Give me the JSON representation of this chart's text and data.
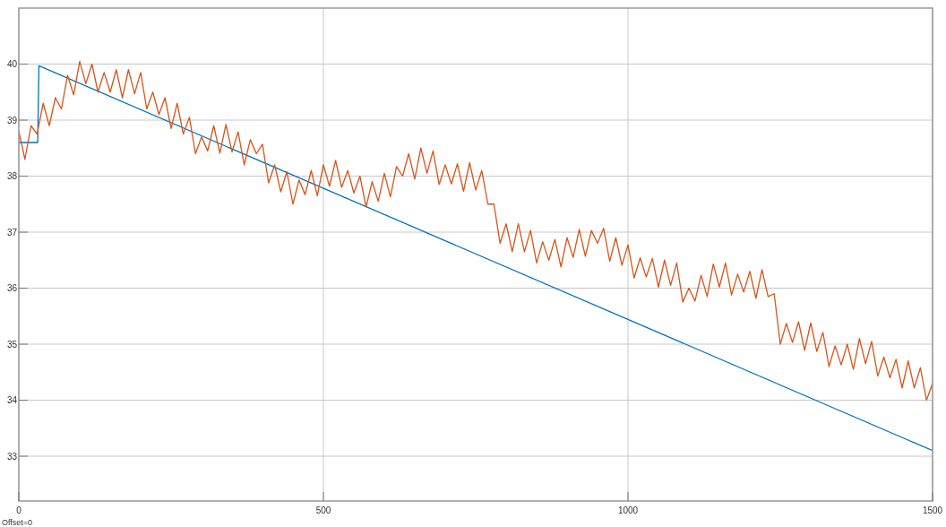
{
  "chart_data": {
    "type": "line",
    "annotations": [
      "Offset=0"
    ],
    "xlim": [
      0,
      1500
    ],
    "xticks": [
      0,
      500,
      1000,
      1500
    ],
    "ylim": [
      32.2,
      41
    ],
    "yticks": [
      33,
      34,
      35,
      36,
      37,
      38,
      39,
      40
    ],
    "grid": true,
    "line_style": "solid",
    "series": [
      {
        "color": "#0072bd",
        "x": [
          0,
          31,
          33,
          1500
        ],
        "values": [
          38.6,
          38.6,
          39.97,
          33.1
        ]
      },
      {
        "color": "#d95319",
        "x": [
          0,
          10,
          20,
          30,
          40,
          50,
          60,
          70,
          80,
          90,
          100,
          110,
          120,
          130,
          140,
          150,
          160,
          170,
          180,
          190,
          200,
          210,
          220,
          230,
          240,
          250,
          260,
          270,
          280,
          290,
          300,
          310,
          320,
          330,
          340,
          350,
          360,
          370,
          380,
          390,
          400,
          410,
          420,
          430,
          440,
          450,
          460,
          470,
          480,
          490,
          500,
          510,
          520,
          530,
          540,
          550,
          560,
          570,
          580,
          590,
          600,
          610,
          620,
          630,
          640,
          650,
          660,
          670,
          680,
          690,
          700,
          710,
          720,
          730,
          740,
          750,
          760,
          770,
          780,
          790,
          800,
          810,
          820,
          830,
          840,
          850,
          860,
          870,
          880,
          890,
          900,
          910,
          920,
          930,
          940,
          950,
          960,
          970,
          980,
          990,
          1000,
          1010,
          1020,
          1030,
          1040,
          1050,
          1060,
          1070,
          1080,
          1090,
          1100,
          1110,
          1120,
          1130,
          1140,
          1150,
          1160,
          1170,
          1180,
          1190,
          1200,
          1210,
          1220,
          1230,
          1240,
          1250,
          1260,
          1270,
          1280,
          1290,
          1300,
          1310,
          1320,
          1330,
          1340,
          1350,
          1360,
          1370,
          1380,
          1390,
          1400,
          1410,
          1420,
          1430,
          1440,
          1450,
          1460,
          1470,
          1480,
          1490,
          1500
        ],
        "values": [
          38.8,
          38.3,
          38.9,
          38.75,
          39.3,
          38.9,
          39.4,
          39.2,
          39.8,
          39.45,
          40.05,
          39.65,
          40.0,
          39.5,
          39.85,
          39.5,
          39.9,
          39.4,
          39.9,
          39.47,
          39.85,
          39.2,
          39.5,
          39.1,
          39.4,
          38.85,
          39.3,
          38.75,
          39.05,
          38.4,
          38.7,
          38.45,
          38.9,
          38.41,
          38.92,
          38.43,
          38.79,
          38.2,
          38.65,
          38.4,
          38.57,
          37.88,
          38.2,
          37.72,
          38.08,
          37.5,
          37.93,
          37.67,
          38.1,
          37.65,
          38.2,
          37.82,
          38.28,
          37.8,
          38.1,
          37.7,
          38.0,
          37.45,
          37.9,
          37.55,
          38.05,
          37.63,
          38.17,
          38.0,
          38.4,
          37.95,
          38.5,
          38.05,
          38.45,
          37.85,
          38.2,
          37.86,
          38.22,
          37.73,
          38.24,
          37.75,
          38.1,
          37.5,
          37.5,
          36.8,
          37.15,
          36.65,
          37.15,
          36.65,
          37.03,
          36.45,
          36.83,
          36.5,
          36.87,
          36.38,
          36.9,
          36.55,
          37.05,
          36.57,
          37.03,
          36.8,
          37.07,
          36.48,
          36.9,
          36.41,
          36.77,
          36.18,
          36.54,
          36.2,
          36.53,
          36.02,
          36.5,
          36.05,
          36.45,
          35.75,
          36.0,
          35.77,
          36.23,
          35.85,
          36.43,
          36.02,
          36.45,
          35.88,
          36.25,
          35.93,
          36.3,
          35.82,
          36.33,
          35.85,
          35.9,
          35.0,
          35.37,
          35.03,
          35.4,
          34.89,
          35.38,
          34.87,
          35.21,
          34.6,
          34.97,
          34.63,
          35.0,
          34.55,
          35.1,
          34.65,
          35.05,
          34.43,
          34.77,
          34.4,
          34.73,
          34.22,
          34.7,
          34.22,
          34.58,
          34.0,
          34.3
        ]
      }
    ]
  }
}
